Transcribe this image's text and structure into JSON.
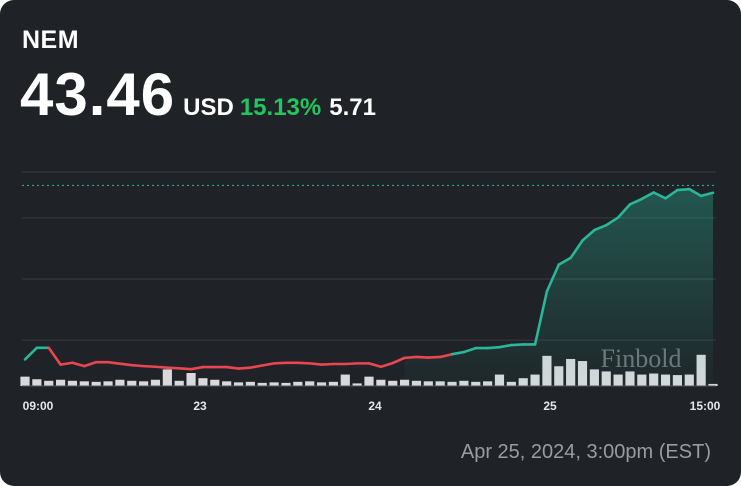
{
  "header": {
    "ticker": "NEM",
    "price": "43.46",
    "currency": "USD",
    "change_percent": "15.13%",
    "change_value": "5.71"
  },
  "footer": {
    "timestamp": "Apr 25, 2024, 3:00pm (EST)"
  },
  "watermark": "Finbold",
  "colors": {
    "background": "#1f2227",
    "up": "#2ab799",
    "down": "#e8474f",
    "percent_text": "#22c55e",
    "volume": "#d9d9dc",
    "grid": "#3a3d43",
    "reference_line": "#26a69a"
  },
  "chart_data": {
    "type": "line",
    "x_tick_labels": [
      "09:00",
      "23",
      "24",
      "25",
      "15:00"
    ],
    "reference_value": 43.46,
    "grid": true,
    "price": [
      37.77,
      38.15,
      38.15,
      37.6,
      37.66,
      37.55,
      37.68,
      37.68,
      37.63,
      37.58,
      37.55,
      37.53,
      37.5,
      37.48,
      37.45,
      37.52,
      37.52,
      37.52,
      37.47,
      37.5,
      37.57,
      37.64,
      37.66,
      37.66,
      37.64,
      37.6,
      37.62,
      37.62,
      37.64,
      37.64,
      37.53,
      37.65,
      37.82,
      37.85,
      37.83,
      37.85,
      37.94,
      38.01,
      38.14,
      38.14,
      38.17,
      38.24,
      38.26,
      38.26,
      40.0,
      40.87,
      41.09,
      41.66,
      42.0,
      42.16,
      42.41,
      42.84,
      43.02,
      43.23,
      43.04,
      43.31,
      43.34,
      43.12,
      43.22
    ],
    "volume": [
      0.18,
      0.13,
      0.1,
      0.12,
      0.1,
      0.09,
      0.08,
      0.09,
      0.12,
      0.1,
      0.09,
      0.12,
      0.32,
      0.1,
      0.25,
      0.15,
      0.12,
      0.09,
      0.07,
      0.08,
      0.06,
      0.07,
      0.06,
      0.08,
      0.09,
      0.07,
      0.08,
      0.22,
      0.05,
      0.18,
      0.12,
      0.1,
      0.12,
      0.1,
      0.09,
      0.09,
      0.08,
      0.1,
      0.08,
      0.09,
      0.22,
      0.08,
      0.15,
      0.22,
      0.58,
      0.38,
      0.52,
      0.48,
      0.32,
      0.28,
      0.22,
      0.28,
      0.22,
      0.24,
      0.22,
      0.21,
      0.22,
      0.6,
      0.04
    ]
  }
}
